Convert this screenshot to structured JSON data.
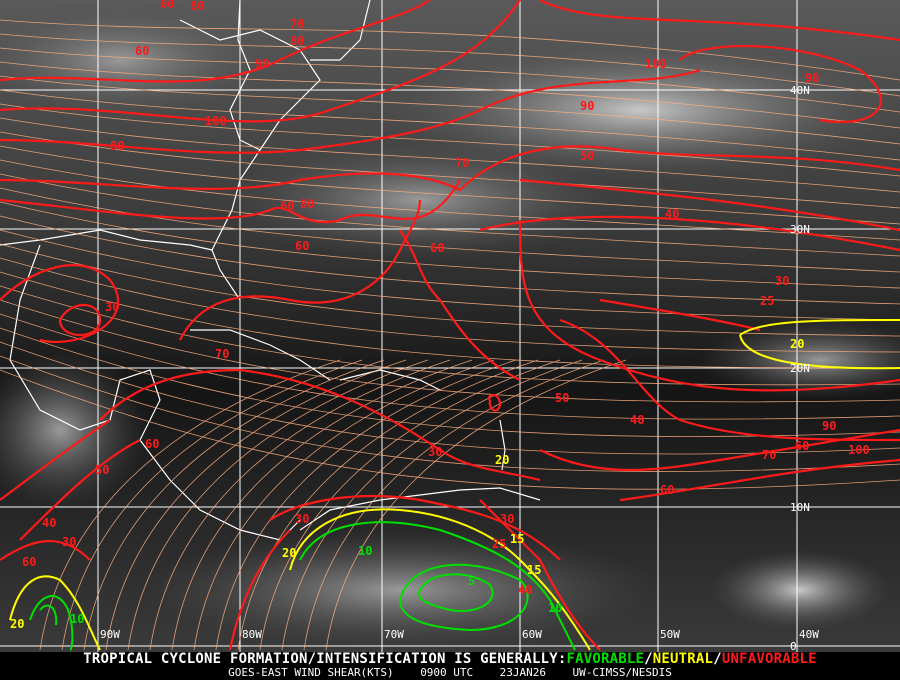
{
  "map": {
    "grid_labels": {
      "lat": [
        "40N",
        "30N",
        "20N",
        "10N",
        "0"
      ],
      "lon": [
        "90W",
        "80W",
        "70W",
        "60W",
        "50W",
        "40W"
      ]
    },
    "contour_labels": [
      "60",
      "80",
      "70",
      "60",
      "80",
      "90",
      "100",
      "80",
      "60",
      "90",
      "100",
      "90",
      "60",
      "50",
      "70",
      "80",
      "60",
      "40",
      "30",
      "25",
      "20",
      "30",
      "70",
      "60",
      "50",
      "40",
      "90",
      "100",
      "60",
      "70",
      "50",
      "40",
      "30",
      "60",
      "30",
      "20",
      "10",
      "20",
      "25",
      "15",
      "10",
      "5",
      "40",
      "30",
      "20",
      "15",
      "10",
      "60",
      "30"
    ],
    "colors": {
      "unfavorable": "#ff1a1a",
      "neutral": "#ffff00",
      "favorable": "#00e000",
      "streamline": "#ffb080",
      "coastline": "#ffffff",
      "grid": "#ffffff"
    }
  },
  "caption": {
    "headline": "TROPICAL CYCLONE FORMATION/INTENSIFICATION IS GENERALLY:",
    "favorable": "FAVORABLE",
    "neutral": "NEUTRAL",
    "unfavorable": "UNFAVORABLE",
    "sep": "/",
    "product": "GOES-EAST WIND SHEAR(KTS)",
    "time": "0900 UTC",
    "date": "23JAN26",
    "source": "UW-CIMSS/NESDIS"
  }
}
